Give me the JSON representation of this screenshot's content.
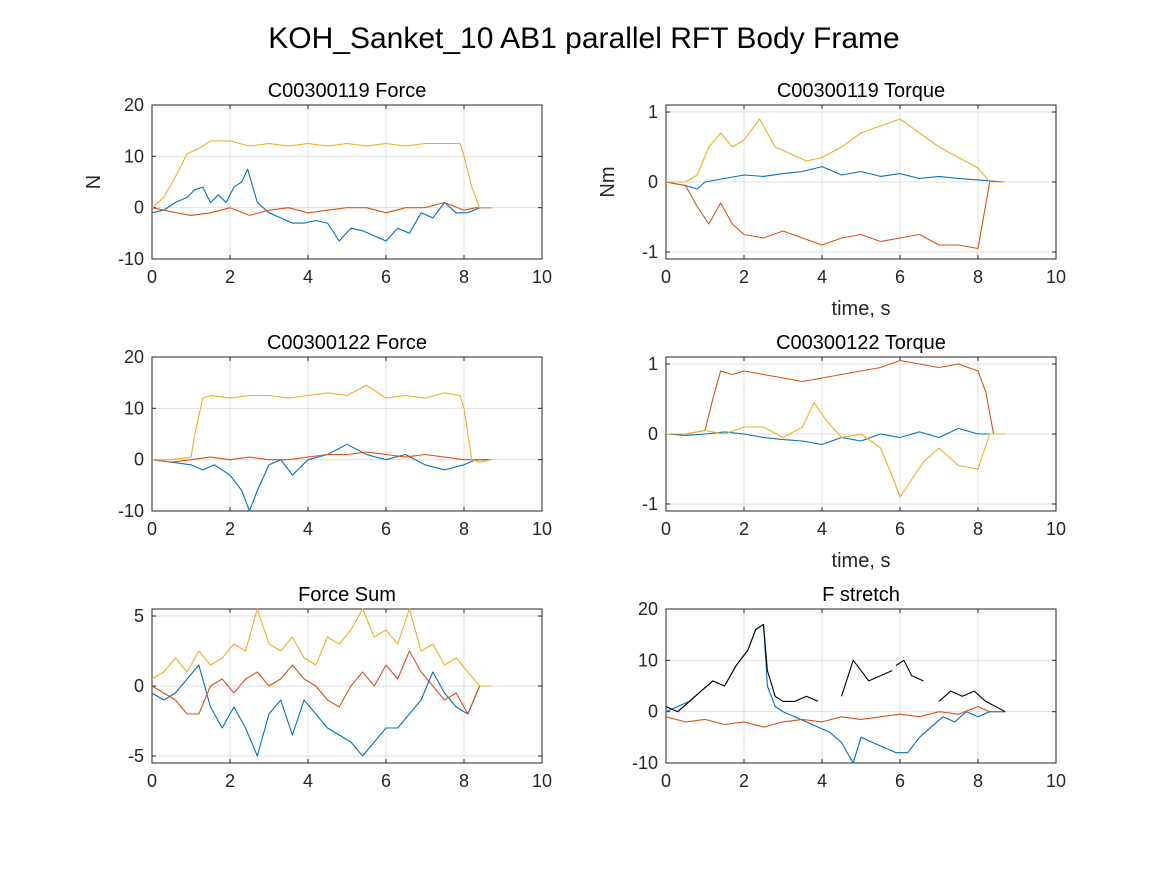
{
  "figure": {
    "title": "KOH_Sanket_10 AB1 parallel RFT Body Frame"
  },
  "colors": {
    "blue": "#0072BD",
    "orange": "#D95319",
    "yellow": "#EDB120",
    "black": "#000000"
  },
  "chart_data": [
    {
      "type": "line",
      "title": "C00300119 Force",
      "xlabel": "",
      "ylabel": "N",
      "xlim": [
        0,
        10
      ],
      "ylim": [
        -10,
        20
      ],
      "xticks": [
        "0",
        "2",
        "4",
        "6",
        "8",
        "10"
      ],
      "yticks": [
        "-10",
        "0",
        "10",
        "20"
      ],
      "grid": true,
      "series": [
        {
          "color": "blue",
          "x": [
            0,
            0.3,
            0.6,
            0.9,
            1.1,
            1.3,
            1.5,
            1.7,
            1.9,
            2.1,
            2.3,
            2.45,
            2.55,
            2.7,
            3.0,
            3.3,
            3.6,
            3.9,
            4.2,
            4.5,
            4.8,
            5.1,
            5.4,
            5.7,
            6.0,
            6.3,
            6.6,
            6.9,
            7.2,
            7.5,
            7.8,
            8.1,
            8.4,
            8.7
          ],
          "y": [
            -1,
            -0.5,
            1,
            2,
            3.5,
            4,
            1,
            2.5,
            1,
            4,
            5,
            7.5,
            5,
            1,
            -1,
            -2,
            -3,
            -3,
            -2.5,
            -3,
            -6.5,
            -4,
            -4.5,
            -5.5,
            -6.5,
            -4,
            -5,
            -1,
            -2,
            1,
            -1,
            -1,
            0,
            0
          ]
        },
        {
          "color": "orange",
          "x": [
            0,
            0.5,
            1.0,
            1.5,
            2.0,
            2.5,
            3.0,
            3.5,
            4.0,
            4.5,
            5.0,
            5.5,
            6.0,
            6.5,
            7.0,
            7.5,
            8.0,
            8.3,
            8.7
          ],
          "y": [
            0,
            -0.8,
            -1.5,
            -1,
            0,
            -1.5,
            -0.5,
            0,
            -1,
            -0.5,
            0,
            0,
            -1,
            0,
            0,
            1,
            -0.5,
            0,
            0
          ]
        },
        {
          "color": "yellow",
          "x": [
            0,
            0.3,
            0.6,
            0.9,
            1.2,
            1.5,
            2.0,
            2.5,
            3.0,
            3.5,
            4.0,
            4.5,
            5.0,
            5.5,
            6.0,
            6.5,
            7.0,
            7.5,
            7.9,
            8.0,
            8.2,
            8.4,
            8.7
          ],
          "y": [
            0,
            2,
            6,
            10.5,
            11.5,
            13,
            13,
            12,
            12.5,
            12,
            12.5,
            12,
            12.5,
            12,
            12.5,
            12,
            12.5,
            12.5,
            12.5,
            10,
            4,
            0,
            0
          ]
        }
      ]
    },
    {
      "type": "line",
      "title": "C00300119 Torque",
      "xlabel": "time, s",
      "ylabel": "Nm",
      "xlim": [
        0,
        10
      ],
      "ylim": [
        -1.1,
        1.1
      ],
      "xticks": [
        "0",
        "2",
        "4",
        "6",
        "8",
        "10"
      ],
      "yticks": [
        "-1",
        "0",
        "1"
      ],
      "grid": true,
      "series": [
        {
          "color": "blue",
          "x": [
            0,
            0.5,
            0.8,
            1.0,
            1.5,
            2.0,
            2.5,
            3.0,
            3.5,
            4.0,
            4.5,
            5.0,
            5.5,
            6.0,
            6.5,
            7.0,
            7.5,
            8.0,
            8.7
          ],
          "y": [
            0,
            -0.05,
            -0.1,
            0,
            0.05,
            0.1,
            0.08,
            0.12,
            0.15,
            0.22,
            0.1,
            0.15,
            0.08,
            0.12,
            0.05,
            0.08,
            0.05,
            0.03,
            0
          ]
        },
        {
          "color": "orange",
          "x": [
            0,
            0.5,
            0.8,
            1.1,
            1.4,
            1.7,
            2.0,
            2.5,
            3.0,
            3.5,
            4.0,
            4.5,
            5.0,
            5.5,
            6.0,
            6.5,
            7.0,
            7.5,
            8.0,
            8.3,
            8.7
          ],
          "y": [
            0,
            -0.05,
            -0.35,
            -0.6,
            -0.3,
            -0.6,
            -0.75,
            -0.8,
            -0.7,
            -0.8,
            -0.9,
            -0.8,
            -0.75,
            -0.85,
            -0.8,
            -0.75,
            -0.9,
            -0.9,
            -0.95,
            0,
            0
          ]
        },
        {
          "color": "yellow",
          "x": [
            0,
            0.5,
            0.8,
            1.1,
            1.4,
            1.7,
            2.0,
            2.4,
            2.8,
            3.2,
            3.6,
            4.0,
            4.5,
            5.0,
            5.5,
            6.0,
            6.5,
            7.0,
            7.5,
            8.0,
            8.3,
            8.7
          ],
          "y": [
            0,
            0,
            0.1,
            0.5,
            0.7,
            0.5,
            0.6,
            0.9,
            0.5,
            0.4,
            0.3,
            0.35,
            0.5,
            0.7,
            0.8,
            0.9,
            0.7,
            0.5,
            0.35,
            0.2,
            0,
            0
          ]
        }
      ]
    },
    {
      "type": "line",
      "title": "C00300122 Force",
      "xlabel": "",
      "ylabel": "",
      "xlim": [
        0,
        10
      ],
      "ylim": [
        -10,
        20
      ],
      "xticks": [
        "0",
        "2",
        "4",
        "6",
        "8",
        "10"
      ],
      "yticks": [
        "-10",
        "0",
        "10",
        "20"
      ],
      "grid": true,
      "series": [
        {
          "color": "blue",
          "x": [
            0,
            0.5,
            1.0,
            1.3,
            1.6,
            2.0,
            2.3,
            2.5,
            2.7,
            3.0,
            3.3,
            3.6,
            4.0,
            4.5,
            5.0,
            5.5,
            6.0,
            6.5,
            7.0,
            7.5,
            8.0,
            8.3,
            8.7
          ],
          "y": [
            0,
            -0.5,
            -1,
            -2,
            -1,
            -3,
            -6,
            -10,
            -6,
            -1,
            0,
            -3,
            0,
            1,
            3,
            1,
            0,
            1,
            -1,
            -2,
            -1,
            0,
            0
          ]
        },
        {
          "color": "orange",
          "x": [
            0,
            0.5,
            1.0,
            1.5,
            2.0,
            2.5,
            3.0,
            3.5,
            4.0,
            4.5,
            5.0,
            5.5,
            6.0,
            6.5,
            7.0,
            7.5,
            8.0,
            8.3,
            8.7
          ],
          "y": [
            0,
            -0.5,
            0,
            0.5,
            0,
            0.5,
            0,
            0,
            0.5,
            1,
            1,
            1.5,
            1,
            0.5,
            1,
            0.5,
            0,
            0,
            0
          ]
        },
        {
          "color": "yellow",
          "x": [
            0,
            0.5,
            1.0,
            1.1,
            1.3,
            1.5,
            2.0,
            2.5,
            3.0,
            3.5,
            4.0,
            4.5,
            5.0,
            5.5,
            6.0,
            6.5,
            7.0,
            7.5,
            7.9,
            8.0,
            8.2,
            8.4,
            8.7
          ],
          "y": [
            0,
            0,
            0.5,
            5,
            12,
            12.5,
            12,
            12.5,
            12.5,
            12,
            12.5,
            13,
            12.5,
            14.5,
            12,
            12.5,
            12,
            13,
            12.5,
            10,
            0,
            -0.5,
            0
          ]
        }
      ]
    },
    {
      "type": "line",
      "title": "C00300122 Torque",
      "xlabel": "time, s",
      "ylabel": "",
      "xlim": [
        0,
        10
      ],
      "ylim": [
        -1.1,
        1.1
      ],
      "xticks": [
        "0",
        "2",
        "4",
        "6",
        "8",
        "10"
      ],
      "yticks": [
        "-1",
        "0",
        "1"
      ],
      "grid": true,
      "series": [
        {
          "color": "blue",
          "x": [
            0,
            0.5,
            1.0,
            1.5,
            2.0,
            2.5,
            3.0,
            3.5,
            4.0,
            4.5,
            5.0,
            5.5,
            6.0,
            6.5,
            7.0,
            7.5,
            8.0,
            8.3,
            8.7
          ],
          "y": [
            0,
            -0.02,
            0,
            0.03,
            0,
            -0.05,
            -0.08,
            -0.1,
            -0.15,
            -0.05,
            -0.1,
            0,
            -0.05,
            0.03,
            -0.05,
            0.08,
            0,
            0,
            0
          ]
        },
        {
          "color": "orange",
          "x": [
            0,
            0.5,
            1.0,
            1.2,
            1.4,
            1.7,
            2.0,
            2.5,
            3.0,
            3.5,
            4.0,
            4.5,
            5.0,
            5.5,
            6.0,
            6.5,
            7.0,
            7.5,
            8.0,
            8.2,
            8.4,
            8.7
          ],
          "y": [
            0,
            0,
            0.05,
            0.5,
            0.9,
            0.85,
            0.9,
            0.85,
            0.8,
            0.75,
            0.8,
            0.85,
            0.9,
            0.95,
            1.05,
            1.0,
            0.95,
            1.0,
            0.9,
            0.6,
            0,
            0
          ]
        },
        {
          "color": "yellow",
          "x": [
            0,
            0.5,
            1.0,
            1.5,
            2.0,
            2.5,
            3.0,
            3.5,
            3.8,
            4.1,
            4.5,
            5.0,
            5.5,
            5.8,
            6.0,
            6.3,
            6.6,
            7.0,
            7.5,
            8.0,
            8.3,
            8.7
          ],
          "y": [
            0,
            0,
            0.05,
            0,
            0.1,
            0.1,
            -0.05,
            0.1,
            0.45,
            0.2,
            -0.05,
            0,
            -0.2,
            -0.6,
            -0.9,
            -0.65,
            -0.4,
            -0.2,
            -0.45,
            -0.5,
            0,
            0
          ]
        }
      ]
    },
    {
      "type": "line",
      "title": "Force Sum",
      "xlabel": "",
      "ylabel": "",
      "xlim": [
        0,
        10
      ],
      "ylim": [
        -5.5,
        5.5
      ],
      "xticks": [
        "0",
        "2",
        "4",
        "6",
        "8",
        "10"
      ],
      "yticks": [
        "-5",
        "0",
        "5"
      ],
      "grid": true,
      "series": [
        {
          "color": "blue",
          "x": [
            0,
            0.3,
            0.6,
            0.9,
            1.2,
            1.5,
            1.8,
            2.1,
            2.4,
            2.7,
            3.0,
            3.3,
            3.6,
            3.9,
            4.2,
            4.5,
            4.8,
            5.1,
            5.4,
            5.7,
            6.0,
            6.3,
            6.6,
            6.9,
            7.2,
            7.5,
            7.8,
            8.1,
            8.4,
            8.7
          ],
          "y": [
            -0.5,
            -1,
            -0.5,
            0.5,
            1.5,
            -1.5,
            -3,
            -1.5,
            -3,
            -5,
            -2,
            -1,
            -3.5,
            -1,
            -2,
            -3,
            -3.5,
            -4,
            -5,
            -4,
            -3,
            -3,
            -2,
            -1,
            1,
            -0.5,
            -1.5,
            -2,
            0,
            0
          ]
        },
        {
          "color": "orange",
          "x": [
            0,
            0.3,
            0.6,
            0.9,
            1.2,
            1.5,
            1.8,
            2.1,
            2.4,
            2.7,
            3.0,
            3.3,
            3.6,
            3.9,
            4.2,
            4.5,
            4.8,
            5.1,
            5.4,
            5.7,
            6.0,
            6.3,
            6.6,
            6.9,
            7.2,
            7.5,
            7.8,
            8.1,
            8.4,
            8.7
          ],
          "y": [
            0,
            -0.5,
            -1,
            -2,
            -2,
            0,
            0.5,
            -0.5,
            0.5,
            1,
            0,
            0.5,
            1.5,
            0.5,
            0,
            -1,
            -1.5,
            0,
            1,
            0,
            1.5,
            0.5,
            2.5,
            1,
            0,
            -1,
            -0.5,
            -2,
            0,
            0
          ]
        },
        {
          "color": "yellow",
          "x": [
            0,
            0.3,
            0.6,
            0.9,
            1.2,
            1.5,
            1.8,
            2.1,
            2.4,
            2.7,
            3.0,
            3.3,
            3.6,
            3.9,
            4.2,
            4.5,
            4.8,
            5.1,
            5.4,
            5.7,
            6.0,
            6.3,
            6.6,
            6.9,
            7.2,
            7.5,
            7.8,
            8.1,
            8.4,
            8.7
          ],
          "y": [
            0.5,
            1,
            2,
            1,
            2.5,
            1.5,
            2,
            3,
            2.5,
            5.5,
            3,
            2.5,
            3.5,
            2,
            1.5,
            3.5,
            3,
            4,
            5.5,
            3.5,
            4,
            3,
            5.5,
            2.5,
            3,
            1.5,
            2,
            1,
            0,
            0
          ]
        }
      ]
    },
    {
      "type": "line",
      "title": "F stretch",
      "xlabel": "",
      "ylabel": "",
      "xlim": [
        0,
        10
      ],
      "ylim": [
        -10,
        20
      ],
      "xticks": [
        "0",
        "2",
        "4",
        "6",
        "8",
        "10"
      ],
      "yticks": [
        "-10",
        "0",
        "10",
        "20"
      ],
      "grid": true,
      "series": [
        {
          "color": "blue",
          "x": [
            0,
            0.3,
            0.6,
            0.9,
            1.2,
            1.5,
            1.8,
            2.1,
            2.3,
            2.5,
            2.6,
            2.8,
            3.0,
            3.3,
            3.6,
            3.9,
            4.2,
            4.5,
            4.8,
            5.0,
            5.3,
            5.6,
            5.9,
            6.2,
            6.5,
            6.8,
            7.1,
            7.4,
            7.7,
            8.0,
            8.3,
            8.7
          ],
          "y": [
            0,
            1,
            2,
            4,
            6,
            5,
            9,
            12,
            16,
            17,
            5,
            1,
            0,
            -1,
            -2,
            -3,
            -4,
            -6,
            -10,
            -5,
            -6,
            -7,
            -8,
            -8,
            -5,
            -3,
            -1,
            -2,
            0,
            -1,
            0,
            0
          ]
        },
        {
          "color": "orange",
          "x": [
            0,
            0.5,
            1.0,
            1.5,
            2.0,
            2.5,
            3.0,
            3.5,
            4.0,
            4.5,
            5.0,
            5.5,
            6.0,
            6.5,
            7.0,
            7.5,
            8.0,
            8.3,
            8.7
          ],
          "y": [
            -1,
            -2,
            -1.5,
            -2.5,
            -2,
            -3,
            -2,
            -1.5,
            -2,
            -1,
            -1.5,
            -1,
            -0.5,
            -1,
            0,
            -0.5,
            1,
            0,
            0
          ]
        },
        {
          "color": "black",
          "x": [
            0,
            0.3,
            0.6,
            0.9,
            1.2,
            1.5,
            1.8,
            2.1,
            2.3,
            2.5,
            2.6,
            2.8,
            3.0,
            3.3,
            3.6,
            3.9
          ],
          "y": [
            1,
            0,
            2,
            4,
            6,
            5,
            9,
            12,
            16,
            17,
            8,
            3,
            2,
            2,
            3,
            2
          ]
        },
        {
          "color": "black",
          "x": [
            4.5,
            4.8,
            5.0,
            5.2,
            5.5,
            5.8
          ],
          "y": [
            3,
            10,
            8,
            6,
            7,
            8
          ]
        },
        {
          "color": "black",
          "x": [
            5.9,
            6.1,
            6.3,
            6.6
          ],
          "y": [
            9,
            10,
            7,
            6
          ]
        },
        {
          "color": "black",
          "x": [
            7.0,
            7.3,
            7.6,
            7.9,
            8.2,
            8.7
          ],
          "y": [
            2,
            4,
            3,
            4,
            2,
            0
          ]
        }
      ]
    }
  ]
}
